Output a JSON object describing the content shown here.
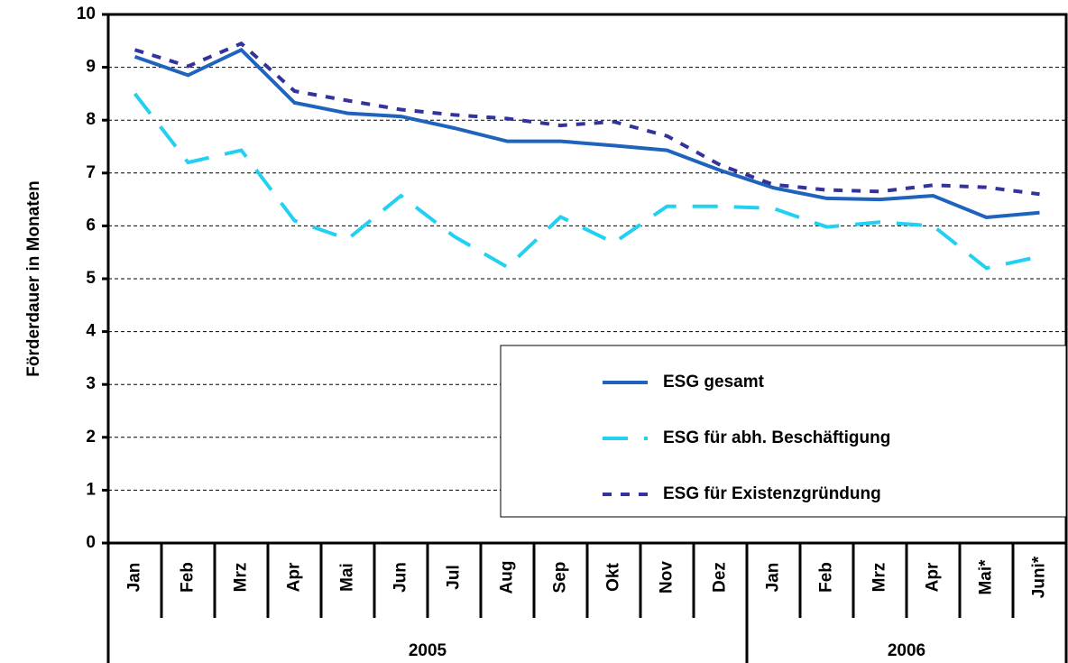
{
  "chart_data": {
    "type": "line",
    "y_label": "Förderdauer in Monaten",
    "categories": [
      "Jan",
      "Feb",
      "Mrz",
      "Apr",
      "Mai",
      "Jun",
      "Jul",
      "Aug",
      "Sep",
      "Okt",
      "Nov",
      "Dez",
      "Jan",
      "Feb",
      "Mrz",
      "Apr",
      "Mai*",
      "Juni*"
    ],
    "groups": [
      {
        "label": "2005",
        "count": 12
      },
      {
        "label": "2006",
        "count": 6
      }
    ],
    "series": [
      {
        "name": "ESG gesamt",
        "color": "#1f63bd",
        "dash": "solid",
        "values": [
          9.2,
          8.85,
          9.33,
          8.33,
          8.13,
          8.07,
          7.85,
          7.6,
          7.6,
          7.52,
          7.43,
          7.05,
          6.72,
          6.52,
          6.5,
          6.57,
          6.16,
          6.25
        ]
      },
      {
        "name": "ESG für abh. Beschäftigung",
        "color": "#22d0f2",
        "dash": "long",
        "values": [
          8.5,
          7.2,
          7.43,
          6.1,
          5.75,
          6.57,
          5.8,
          5.22,
          6.17,
          5.68,
          6.37,
          6.37,
          6.33,
          5.98,
          6.07,
          6.0,
          5.2,
          5.42
        ]
      },
      {
        "name": "ESG für Existenzgründung",
        "color": "#333399",
        "dash": "short",
        "values": [
          9.33,
          9.02,
          9.45,
          8.55,
          8.37,
          8.2,
          8.1,
          8.03,
          7.9,
          7.97,
          7.7,
          7.15,
          6.78,
          6.68,
          6.65,
          6.77,
          6.73,
          6.6
        ]
      }
    ],
    "ylim": [
      0,
      10
    ],
    "yticks": [
      0,
      1,
      2,
      3,
      4,
      5,
      6,
      7,
      8,
      9,
      10
    ],
    "grid": true,
    "legend": "lower right"
  }
}
